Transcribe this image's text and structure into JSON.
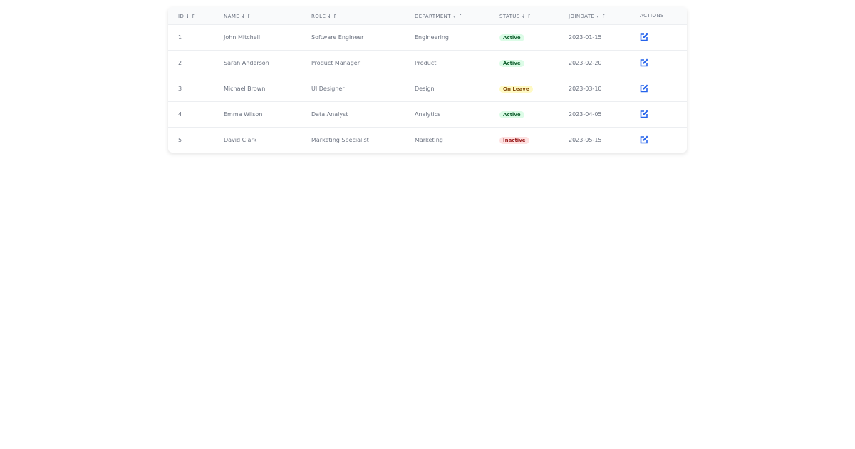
{
  "columns": [
    {
      "label": "ID",
      "sortable": true
    },
    {
      "label": "Name",
      "sortable": true
    },
    {
      "label": "Role",
      "sortable": true
    },
    {
      "label": "Department",
      "sortable": true
    },
    {
      "label": "Status",
      "sortable": true
    },
    {
      "label": "JoinDate",
      "sortable": true
    },
    {
      "label": "Actions",
      "sortable": false
    }
  ],
  "sort_icon": "⇃↾",
  "status_colors": {
    "Active": {
      "bg": "#dcfce7",
      "fg": "#166534"
    },
    "On Leave": {
      "bg": "#fef9c3",
      "fg": "#854d0e"
    },
    "Inactive": {
      "bg": "#fee2e2",
      "fg": "#991b1b"
    }
  },
  "rows": [
    {
      "id": "1",
      "name": "John Mitchell",
      "role": "Software Engineer",
      "department": "Engineering",
      "status": "Active",
      "joindate": "2023-01-15"
    },
    {
      "id": "2",
      "name": "Sarah Anderson",
      "role": "Product Manager",
      "department": "Product",
      "status": "Active",
      "joindate": "2023-02-20"
    },
    {
      "id": "3",
      "name": "Michael Brown",
      "role": "UI Designer",
      "department": "Design",
      "status": "On Leave",
      "joindate": "2023-03-10"
    },
    {
      "id": "4",
      "name": "Emma Wilson",
      "role": "Data Analyst",
      "department": "Analytics",
      "status": "Active",
      "joindate": "2023-04-05"
    },
    {
      "id": "5",
      "name": "David Clark",
      "role": "Marketing Specialist",
      "department": "Marketing",
      "status": "Inactive",
      "joindate": "2023-05-15"
    }
  ]
}
